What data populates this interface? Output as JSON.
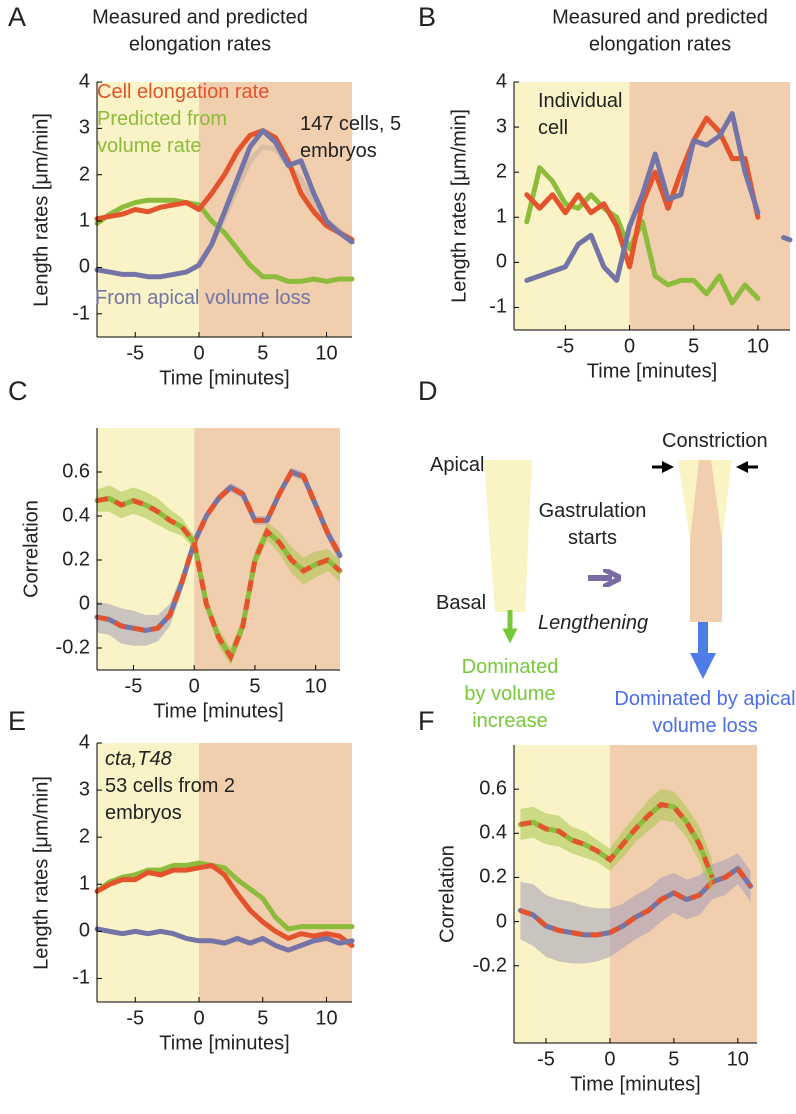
{
  "chart_data": [
    {
      "panel": "A",
      "type": "line",
      "title": [
        "Measured and predicted",
        "elongation rates"
      ],
      "xlabel": "Time [minutes]",
      "ylabel": "Length rates [μm/min]",
      "xlim": [
        -8,
        12
      ],
      "ylim": [
        -1.5,
        4
      ],
      "xticks": [
        -5,
        0,
        5,
        10
      ],
      "yticks": [
        -1,
        0,
        1,
        2,
        3,
        4
      ],
      "phases": [
        {
          "start": -8,
          "end": 0,
          "color": "#f9f3c7"
        },
        {
          "start": 0,
          "end": 12,
          "color": "#f1cfae"
        }
      ],
      "annotations": [
        "147 cells, 5 embryos"
      ],
      "x": [
        -8,
        -7,
        -6,
        -5,
        -4,
        -3,
        -2,
        -1,
        0,
        1,
        2,
        3,
        4,
        5,
        6,
        7,
        8,
        9,
        10,
        11,
        12
      ],
      "series": [
        {
          "color": "#d9bca6",
          "values": [
            null,
            null,
            null,
            null,
            null,
            null,
            null,
            null,
            0.1,
            0.5,
            1.1,
            1.7,
            2.3,
            2.6,
            2.55,
            2.2,
            1.9,
            1.4,
            1.0,
            0.8,
            0.6
          ]
        },
        {
          "name": "Predicted from volume rate",
          "color": "#8dbb3c",
          "values": [
            0.95,
            1.15,
            1.3,
            1.4,
            1.45,
            1.45,
            1.45,
            1.4,
            1.35,
            1.0,
            0.75,
            0.4,
            0.05,
            -0.2,
            -0.2,
            -0.3,
            -0.3,
            -0.25,
            -0.3,
            -0.25,
            -0.25
          ]
        },
        {
          "name": "Cell elongation rate",
          "color": "#e4532b",
          "values": [
            1.05,
            1.1,
            1.15,
            1.25,
            1.2,
            1.3,
            1.35,
            1.4,
            1.25,
            1.6,
            2.0,
            2.5,
            2.85,
            2.95,
            2.8,
            2.3,
            1.6,
            1.2,
            0.9,
            0.75,
            0.6
          ]
        },
        {
          "name": "From apical volume loss",
          "color": "#7474a6",
          "values": [
            -0.05,
            -0.1,
            -0.15,
            -0.15,
            -0.2,
            -0.2,
            -0.15,
            -0.1,
            0.05,
            0.5,
            1.2,
            1.9,
            2.6,
            2.95,
            2.7,
            2.2,
            2.3,
            1.6,
            1.0,
            0.75,
            0.55
          ]
        }
      ]
    },
    {
      "panel": "B",
      "type": "line",
      "title": [
        "Measured and predicted",
        "elongation rates"
      ],
      "xlabel": "Time [minutes]",
      "ylabel": "Length rates [μm/min]",
      "xlim": [
        -9,
        12.5
      ],
      "ylim": [
        -1.5,
        4
      ],
      "xticks": [
        -5,
        0,
        5,
        10
      ],
      "yticks": [
        -1,
        0,
        1,
        2,
        3,
        4
      ],
      "phases": [
        {
          "start": -9,
          "end": 0,
          "color": "#f9f3c7"
        },
        {
          "start": 0,
          "end": 12.5,
          "color": "#f1cfae"
        }
      ],
      "annotations": [
        "Individual cell"
      ],
      "x": [
        -8,
        -7,
        -6,
        -5,
        -4,
        -3,
        -2,
        -1,
        0,
        1,
        2,
        3,
        4,
        5,
        6,
        7,
        8,
        9,
        10,
        11,
        12,
        12.5
      ],
      "series": [
        {
          "color": "#8dbb3c",
          "values": [
            0.9,
            2.1,
            1.8,
            1.3,
            1.2,
            1.5,
            1.2,
            1.0,
            0.3,
            0.9,
            -0.3,
            -0.5,
            -0.4,
            -0.4,
            -0.7,
            -0.3,
            -0.9,
            -0.5,
            -0.8,
            null,
            null,
            null
          ]
        },
        {
          "color": "#e4532b",
          "values": [
            1.5,
            1.2,
            1.5,
            1.1,
            1.5,
            1.1,
            1.3,
            0.8,
            -0.1,
            1.3,
            2.0,
            1.2,
            2.0,
            2.7,
            3.2,
            2.9,
            2.3,
            2.3,
            1.0,
            null,
            null,
            null
          ]
        },
        {
          "color": "#7474a6",
          "values": [
            -0.4,
            -0.3,
            -0.2,
            -0.1,
            0.4,
            0.6,
            -0.1,
            -0.4,
            0.8,
            1.5,
            2.4,
            1.4,
            1.5,
            2.7,
            2.6,
            2.8,
            3.3,
            2.0,
            1.1,
            null,
            0.55,
            0.5
          ]
        }
      ]
    },
    {
      "panel": "C",
      "type": "line",
      "xlabel": "Time [minutes]",
      "ylabel": "Correlation",
      "xlim": [
        -8,
        12
      ],
      "ylim": [
        -0.3,
        0.8
      ],
      "xticks": [
        -5,
        0,
        5,
        10
      ],
      "yticks": [
        -0.2,
        0,
        0.2,
        0.4,
        0.6
      ],
      "phases": [
        {
          "start": -8,
          "end": 0,
          "color": "#f9f3c7"
        },
        {
          "start": 0,
          "end": 12,
          "color": "#f1cfae"
        }
      ],
      "x": [
        -8,
        -7,
        -6,
        -5,
        -4,
        -3,
        -2,
        -1,
        0,
        1,
        2,
        3,
        4,
        5,
        6,
        7,
        8,
        9,
        10,
        11,
        12
      ],
      "series": [
        {
          "color": "#7474a6",
          "dash_color": "#e4532b",
          "band_color": "#a49cb8",
          "values": [
            -0.06,
            -0.07,
            -0.1,
            -0.11,
            -0.12,
            -0.11,
            -0.05,
            0.1,
            0.28,
            0.4,
            0.48,
            0.53,
            0.5,
            0.38,
            0.38,
            0.5,
            0.6,
            0.58,
            0.45,
            0.32,
            0.22
          ],
          "errors": [
            0.07,
            0.07,
            0.08,
            0.08,
            0.07,
            0.06,
            0.05,
            0.04,
            0.03,
            0.02,
            0.02,
            0.02,
            0.02,
            0.02,
            0.02,
            0.02,
            0.02,
            0.02,
            0.03,
            0.03,
            0.03
          ]
        },
        {
          "color": "#8dbb3c",
          "dash_color": "#e4532b",
          "band_color": "#a9c44c",
          "values": [
            0.47,
            0.48,
            0.45,
            0.47,
            0.45,
            0.42,
            0.38,
            0.35,
            0.28,
            0.0,
            -0.15,
            -0.24,
            -0.1,
            0.2,
            0.33,
            0.28,
            0.2,
            0.15,
            0.18,
            0.2,
            0.15
          ],
          "errors": [
            0.05,
            0.06,
            0.06,
            0.06,
            0.06,
            0.06,
            0.05,
            0.04,
            0.03,
            0.03,
            0.04,
            0.04,
            0.04,
            0.04,
            0.04,
            0.05,
            0.06,
            0.06,
            0.06,
            0.05,
            0.05
          ]
        }
      ]
    },
    {
      "panel": "E",
      "type": "line",
      "xlabel": "Time [minutes]",
      "ylabel": "Length rates [μm/min]",
      "xlim": [
        -8,
        12
      ],
      "ylim": [
        -1.5,
        4
      ],
      "xticks": [
        -5,
        0,
        5,
        10
      ],
      "yticks": [
        -1,
        0,
        1,
        2,
        3,
        4
      ],
      "phases": [
        {
          "start": -8,
          "end": 0,
          "color": "#f9f3c7"
        },
        {
          "start": 0,
          "end": 12,
          "color": "#f1cfae"
        }
      ],
      "annotations": [
        "cta,T48",
        "53 cells from 2 embryos"
      ],
      "x": [
        -8,
        -7,
        -6,
        -5,
        -4,
        -3,
        -2,
        -1,
        0,
        1,
        2,
        3,
        4,
        5,
        6,
        7,
        8,
        9,
        10,
        11,
        12
      ],
      "series": [
        {
          "color": "#8dbb3c",
          "values": [
            0.85,
            1.05,
            1.15,
            1.2,
            1.3,
            1.3,
            1.4,
            1.4,
            1.45,
            1.4,
            1.35,
            1.1,
            0.9,
            0.7,
            0.3,
            0.05,
            0.1,
            0.1,
            0.1,
            0.1,
            0.1
          ]
        },
        {
          "color": "#e4532b",
          "values": [
            0.85,
            1.0,
            1.1,
            1.1,
            1.25,
            1.2,
            1.3,
            1.3,
            1.35,
            1.4,
            1.2,
            0.8,
            0.45,
            0.2,
            0.0,
            -0.15,
            -0.05,
            -0.1,
            -0.05,
            -0.1,
            -0.3
          ]
        },
        {
          "color": "#7474a6",
          "values": [
            0.05,
            0.0,
            -0.05,
            0.0,
            -0.05,
            0.0,
            -0.05,
            -0.15,
            -0.2,
            -0.2,
            -0.25,
            -0.15,
            -0.25,
            -0.15,
            -0.3,
            -0.4,
            -0.3,
            -0.2,
            -0.15,
            -0.25,
            -0.2
          ]
        }
      ]
    },
    {
      "panel": "F",
      "type": "line",
      "xlabel": "Time [minutes]",
      "ylabel": "Correlation",
      "xlim": [
        -7.5,
        11.5
      ],
      "ylim": [
        -0.55,
        0.8
      ],
      "xticks": [
        -5,
        0,
        5,
        10
      ],
      "yticks": [
        -0.2,
        0,
        0.2,
        0.4,
        0.6
      ],
      "phases": [
        {
          "start": -7.5,
          "end": 0,
          "color": "#f9f3c7"
        },
        {
          "start": 0,
          "end": 11.5,
          "color": "#f1cfae"
        }
      ],
      "x": [
        -7,
        -6,
        -5,
        -4,
        -3,
        -2,
        -1,
        0,
        1,
        2,
        3,
        4,
        5,
        6,
        7,
        8,
        9,
        10,
        11
      ],
      "series": [
        {
          "color": "#7474a6",
          "dash_color": "#e4532b",
          "band_color": "#a49cb8",
          "values": [
            0.05,
            0.03,
            -0.02,
            -0.04,
            -0.05,
            -0.06,
            -0.06,
            -0.05,
            -0.02,
            0.02,
            0.05,
            0.1,
            0.13,
            0.1,
            0.12,
            0.18,
            0.2,
            0.24,
            0.16
          ],
          "errors": [
            0.13,
            0.14,
            0.14,
            0.14,
            0.14,
            0.13,
            0.12,
            0.11,
            0.1,
            0.1,
            0.1,
            0.1,
            0.09,
            0.09,
            0.09,
            0.08,
            0.08,
            0.07,
            0.07
          ]
        },
        {
          "color": "#8dbb3c",
          "dash_color": "#e4532b",
          "band_color": "#a9c44c",
          "values": [
            0.44,
            0.45,
            0.42,
            0.41,
            0.37,
            0.35,
            0.32,
            0.28,
            0.35,
            0.42,
            0.48,
            0.53,
            0.52,
            0.45,
            0.35,
            0.2,
            null,
            null,
            null
          ],
          "errors": [
            0.07,
            0.07,
            0.07,
            0.07,
            0.06,
            0.06,
            0.05,
            0.05,
            0.06,
            0.06,
            0.07,
            0.07,
            0.07,
            0.07,
            0.08,
            0.08,
            null,
            null,
            null
          ]
        }
      ]
    }
  ],
  "diagram": {
    "panel": "D",
    "apical": "Apical",
    "basal": "Basal",
    "gastrulation": "Gastrulation starts",
    "constriction": "Constriction",
    "lengthening": "Lengthening",
    "before": "Dominated by volume increase",
    "after": "Dominated by apical volume loss"
  }
}
